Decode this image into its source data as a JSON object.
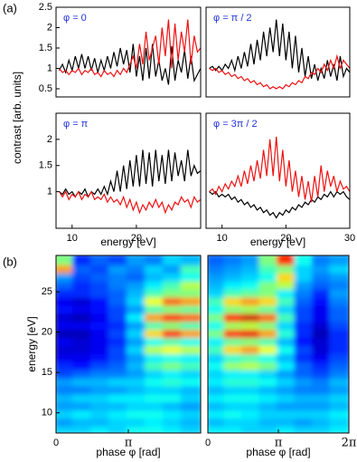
{
  "chart_data": [
    {
      "type": "line",
      "panel_label": "(a)",
      "ylabel": "contrast [arb. units]",
      "annotation": "φ = 0",
      "annotation_color": "#2233dd",
      "xlim": [
        7.5,
        30
      ],
      "ylim": [
        0.3,
        2.5
      ],
      "yticks": [
        0.5,
        1,
        1.5,
        2,
        2.5
      ],
      "x": [
        8,
        8.5,
        9,
        9.5,
        10,
        10.5,
        11,
        11.5,
        12,
        12.5,
        13,
        13.5,
        14,
        14.5,
        15,
        15.5,
        16,
        16.5,
        17,
        17.5,
        18,
        18.5,
        19,
        19.5,
        20,
        20.5,
        21,
        21.5,
        22,
        22.5,
        23,
        23.5,
        24,
        24.5,
        25,
        25.5,
        26,
        26.5,
        27,
        27.5,
        28,
        28.5,
        29,
        29.5,
        30
      ],
      "series": [
        {
          "color": "#000000",
          "values": [
            0.95,
            1.1,
            0.9,
            1.2,
            0.95,
            1.3,
            1.0,
            1.35,
            1.0,
            1.3,
            0.95,
            1.25,
            0.9,
            1.2,
            0.95,
            1.3,
            1.0,
            1.4,
            1.05,
            1.5,
            1.1,
            1.45,
            0.9,
            1.6,
            0.8,
            1.3,
            0.7,
            1.5,
            0.75,
            1.6,
            0.8,
            1.2,
            0.7,
            1.0,
            0.6,
            1.55,
            0.7,
            1.2,
            0.9,
            1.45,
            0.75,
            1.3,
            0.7,
            0.85,
            1.0
          ]
        },
        {
          "color": "#ee1111",
          "values": [
            1.0,
            0.9,
            0.95,
            0.85,
            0.95,
            0.9,
            1.0,
            0.85,
            0.95,
            0.9,
            1.0,
            0.85,
            0.9,
            0.8,
            0.95,
            0.85,
            0.9,
            0.8,
            0.95,
            0.85,
            1.0,
            0.9,
            1.1,
            1.3,
            1.0,
            1.6,
            1.1,
            1.9,
            1.2,
            1.5,
            1.8,
            1.1,
            2.0,
            1.3,
            2.2,
            1.0,
            2.1,
            1.2,
            1.9,
            1.4,
            2.2,
            1.1,
            1.8,
            1.4,
            1.5
          ]
        }
      ]
    },
    {
      "type": "line",
      "annotation": "φ = π / 2",
      "annotation_color": "#2233dd",
      "xlim": [
        7.5,
        30
      ],
      "ylim": [
        0.3,
        2.5
      ],
      "x": [
        8,
        8.5,
        9,
        9.5,
        10,
        10.5,
        11,
        11.5,
        12,
        12.5,
        13,
        13.5,
        14,
        14.5,
        15,
        15.5,
        16,
        16.5,
        17,
        17.5,
        18,
        18.5,
        19,
        19.5,
        20,
        20.5,
        21,
        21.5,
        22,
        22.5,
        23,
        23.5,
        24,
        24.5,
        25,
        25.5,
        26,
        26.5,
        27,
        27.5,
        28,
        28.5,
        29,
        29.5,
        30
      ],
      "series": [
        {
          "color": "#000000",
          "values": [
            1.0,
            1.05,
            0.95,
            1.05,
            0.95,
            1.1,
            1.0,
            1.2,
            0.95,
            1.3,
            1.0,
            1.4,
            1.05,
            1.6,
            1.1,
            1.7,
            1.2,
            1.9,
            1.3,
            2.0,
            1.4,
            2.2,
            1.3,
            2.1,
            1.2,
            1.9,
            1.0,
            1.8,
            0.9,
            1.5,
            0.8,
            1.3,
            0.75,
            1.1,
            0.7,
            1.0,
            0.75,
            1.2,
            0.8,
            1.1,
            0.7,
            1.3,
            0.8,
            1.0,
            0.9
          ]
        },
        {
          "color": "#ee1111",
          "values": [
            1.0,
            0.95,
            1.0,
            0.9,
            0.95,
            0.85,
            0.9,
            0.8,
            0.85,
            0.75,
            0.8,
            0.7,
            0.75,
            0.65,
            0.7,
            0.6,
            0.65,
            0.55,
            0.6,
            0.5,
            0.55,
            0.5,
            0.55,
            0.5,
            0.6,
            0.55,
            0.65,
            0.6,
            0.7,
            0.65,
            0.8,
            0.75,
            0.9,
            0.85,
            1.0,
            0.9,
            1.1,
            0.95,
            1.2,
            1.0,
            1.3,
            1.0,
            1.2,
            1.1,
            1.0
          ]
        }
      ]
    },
    {
      "type": "line",
      "annotation": "φ = π",
      "annotation_color": "#2233dd",
      "xlabel": "energy [eV]",
      "xlim": [
        7.5,
        30
      ],
      "ylim": [
        0.3,
        2.5
      ],
      "yticks": [
        1,
        1.5,
        2
      ],
      "xticks": [
        10,
        20
      ],
      "x": [
        8,
        8.5,
        9,
        9.5,
        10,
        10.5,
        11,
        11.5,
        12,
        12.5,
        13,
        13.5,
        14,
        14.5,
        15,
        15.5,
        16,
        16.5,
        17,
        17.5,
        18,
        18.5,
        19,
        19.5,
        20,
        20.5,
        21,
        21.5,
        22,
        22.5,
        23,
        23.5,
        24,
        24.5,
        25,
        25.5,
        26,
        26.5,
        27,
        27.5,
        28,
        28.5,
        29,
        29.5,
        30
      ],
      "series": [
        {
          "color": "#000000",
          "values": [
            1.0,
            0.95,
            1.05,
            0.95,
            1.0,
            0.9,
            1.0,
            0.95,
            1.05,
            0.9,
            1.0,
            0.95,
            1.05,
            0.95,
            1.1,
            0.95,
            1.2,
            1.0,
            1.4,
            1.0,
            1.5,
            1.05,
            1.6,
            1.1,
            1.7,
            1.1,
            1.8,
            1.15,
            1.75,
            1.1,
            1.8,
            1.2,
            1.7,
            1.15,
            1.8,
            1.2,
            1.75,
            1.3,
            1.6,
            1.2,
            1.8,
            1.3,
            1.5,
            1.35,
            1.4
          ]
        },
        {
          "color": "#ee1111",
          "values": [
            1.0,
            0.9,
            1.0,
            0.85,
            0.95,
            0.9,
            1.0,
            0.85,
            0.95,
            0.9,
            1.0,
            0.85,
            0.9,
            0.85,
            0.95,
            0.8,
            0.9,
            0.8,
            0.85,
            0.75,
            0.9,
            0.7,
            0.85,
            0.65,
            0.8,
            0.6,
            0.75,
            0.65,
            0.8,
            0.7,
            0.85,
            0.7,
            0.8,
            0.6,
            0.75,
            0.65,
            0.8,
            0.75,
            0.9,
            0.8,
            0.85,
            0.7,
            0.9,
            0.8,
            0.85
          ]
        }
      ]
    },
    {
      "type": "line",
      "annotation": "φ = 3π / 2",
      "annotation_color": "#2233dd",
      "xlabel": "energy [eV]",
      "xlim": [
        7.5,
        30
      ],
      "ylim": [
        0.3,
        2.5
      ],
      "xticks": [
        10,
        20,
        30
      ],
      "x": [
        8,
        8.5,
        9,
        9.5,
        10,
        10.5,
        11,
        11.5,
        12,
        12.5,
        13,
        13.5,
        14,
        14.5,
        15,
        15.5,
        16,
        16.5,
        17,
        17.5,
        18,
        18.5,
        19,
        19.5,
        20,
        20.5,
        21,
        21.5,
        22,
        22.5,
        23,
        23.5,
        24,
        24.5,
        25,
        25.5,
        26,
        26.5,
        27,
        27.5,
        28,
        28.5,
        29,
        29.5,
        30
      ],
      "series": [
        {
          "color": "#000000",
          "values": [
            1.0,
            0.95,
            1.0,
            0.9,
            0.95,
            0.9,
            0.95,
            0.85,
            0.9,
            0.8,
            0.85,
            0.75,
            0.8,
            0.7,
            0.75,
            0.65,
            0.7,
            0.6,
            0.65,
            0.55,
            0.6,
            0.5,
            0.6,
            0.55,
            0.65,
            0.6,
            0.7,
            0.65,
            0.75,
            0.7,
            0.8,
            0.75,
            0.85,
            0.8,
            0.9,
            0.85,
            0.95,
            0.9,
            1.0,
            0.9,
            1.0,
            0.95,
            1.0,
            0.9,
            0.85
          ]
        },
        {
          "color": "#ee1111",
          "values": [
            1.0,
            1.05,
            0.95,
            1.1,
            1.0,
            1.15,
            1.05,
            1.2,
            1.1,
            1.3,
            1.1,
            1.4,
            1.15,
            1.5,
            1.2,
            1.6,
            1.25,
            1.8,
            1.3,
            2.0,
            1.3,
            2.05,
            1.2,
            1.8,
            1.1,
            1.6,
            1.0,
            1.4,
            0.9,
            1.3,
            0.85,
            1.2,
            0.8,
            1.3,
            0.9,
            1.5,
            1.0,
            1.4,
            1.1,
            1.3,
            1.0,
            1.2,
            1.05,
            1.1,
            1.0
          ]
        }
      ]
    },
    {
      "type": "heatmap",
      "panel_label": "(b)",
      "ylabel": "energy [eV]",
      "xlabel": "phase φ [rad]",
      "colormap": "jet",
      "clim": [
        0.4,
        2.2
      ],
      "xlim": [
        0,
        6.2832
      ],
      "ylim": [
        7.5,
        29.5
      ],
      "xticks": [
        0,
        {
          "value": 3.1416,
          "label": "π"
        }
      ],
      "yticks": [
        10,
        15,
        20,
        25
      ],
      "x": [
        0.393,
        1.178,
        1.963,
        2.749,
        3.534,
        4.32,
        5.105,
        5.89
      ],
      "y": [
        8,
        9,
        10,
        11,
        12,
        13,
        14,
        15,
        16,
        17,
        18,
        19,
        20,
        21,
        22,
        23,
        24,
        25,
        26,
        27,
        28,
        29
      ],
      "values": [
        [
          1.0,
          1.0,
          1.05,
          1.0,
          1.1,
          1.1,
          1.05,
          1.0
        ],
        [
          0.9,
          0.95,
          0.95,
          1.0,
          1.0,
          1.05,
          1.0,
          0.95
        ],
        [
          1.0,
          1.05,
          1.0,
          1.05,
          1.1,
          1.1,
          1.05,
          1.0
        ],
        [
          0.9,
          0.9,
          0.95,
          0.95,
          1.0,
          1.0,
          0.95,
          0.9
        ],
        [
          0.95,
          1.0,
          1.0,
          1.05,
          1.05,
          1.1,
          1.1,
          1.0
        ],
        [
          0.85,
          0.85,
          0.9,
          0.9,
          0.95,
          1.0,
          1.0,
          0.95
        ],
        [
          0.9,
          0.95,
          0.95,
          1.0,
          1.0,
          1.1,
          1.15,
          1.1
        ],
        [
          0.75,
          0.8,
          0.85,
          0.85,
          0.9,
          1.0,
          1.05,
          1.0
        ],
        [
          0.7,
          0.65,
          0.75,
          0.8,
          0.95,
          1.2,
          1.3,
          1.2
        ],
        [
          0.6,
          0.6,
          0.65,
          0.75,
          0.9,
          1.05,
          1.1,
          1.05
        ],
        [
          0.55,
          0.55,
          0.6,
          0.75,
          1.0,
          1.4,
          1.5,
          1.4
        ],
        [
          0.6,
          0.55,
          0.6,
          0.7,
          0.9,
          1.1,
          1.2,
          1.1
        ],
        [
          0.5,
          0.5,
          0.6,
          0.75,
          1.0,
          1.6,
          1.9,
          1.7
        ],
        [
          0.6,
          0.6,
          0.65,
          0.7,
          0.9,
          1.2,
          1.3,
          1.2
        ],
        [
          0.55,
          0.5,
          0.6,
          0.75,
          1.05,
          1.7,
          1.9,
          1.8
        ],
        [
          0.65,
          0.6,
          0.65,
          0.75,
          0.9,
          1.2,
          1.3,
          1.25
        ],
        [
          0.6,
          0.55,
          0.65,
          0.8,
          1.0,
          1.5,
          1.8,
          1.7
        ],
        [
          0.7,
          0.7,
          0.75,
          0.8,
          0.95,
          1.2,
          1.3,
          1.3
        ],
        [
          0.8,
          0.7,
          0.75,
          0.85,
          0.9,
          1.05,
          1.2,
          1.4
        ],
        [
          0.9,
          0.75,
          0.8,
          0.85,
          0.8,
          0.95,
          1.0,
          1.1
        ],
        [
          1.7,
          0.8,
          0.75,
          0.9,
          0.85,
          1.0,
          0.9,
          1.2
        ],
        [
          1.3,
          0.7,
          0.8,
          0.75,
          0.9,
          0.85,
          1.0,
          0.95
        ]
      ]
    },
    {
      "type": "heatmap",
      "xlabel": "phase φ [rad]",
      "colormap": "jet",
      "clim": [
        0.4,
        2.2
      ],
      "xlim": [
        0,
        6.2832
      ],
      "ylim": [
        7.5,
        29.5
      ],
      "xticks": [
        0,
        {
          "value": 3.1416,
          "label": "π"
        },
        {
          "value": 6.2832,
          "label": "2π"
        }
      ],
      "x": [
        0.393,
        1.178,
        1.963,
        2.749,
        3.534,
        4.32,
        5.105,
        5.89
      ],
      "y": [
        8,
        9,
        10,
        11,
        12,
        13,
        14,
        15,
        16,
        17,
        18,
        19,
        20,
        21,
        22,
        23,
        24,
        25,
        26,
        27,
        28,
        29
      ],
      "values": [
        [
          1.05,
          1.05,
          1.0,
          1.0,
          1.05,
          1.0,
          1.0,
          1.05
        ],
        [
          0.95,
          1.0,
          1.0,
          0.95,
          0.95,
          0.9,
          0.95,
          1.0
        ],
        [
          1.05,
          1.1,
          1.05,
          1.0,
          1.0,
          1.0,
          1.0,
          1.05
        ],
        [
          0.95,
          1.0,
          1.0,
          0.95,
          0.9,
          0.9,
          0.9,
          0.95
        ],
        [
          1.05,
          1.1,
          1.1,
          1.05,
          1.0,
          0.95,
          0.95,
          1.0
        ],
        [
          0.95,
          1.0,
          1.0,
          0.95,
          0.9,
          0.85,
          0.85,
          0.9
        ],
        [
          1.05,
          1.15,
          1.15,
          1.1,
          1.0,
          0.9,
          0.85,
          0.95
        ],
        [
          1.0,
          1.05,
          1.05,
          1.0,
          0.9,
          0.8,
          0.75,
          0.85
        ],
        [
          1.1,
          1.35,
          1.4,
          1.3,
          1.05,
          0.8,
          0.7,
          0.8
        ],
        [
          1.0,
          1.15,
          1.2,
          1.1,
          0.95,
          0.7,
          0.6,
          0.75
        ],
        [
          1.2,
          1.6,
          1.7,
          1.5,
          1.1,
          0.75,
          0.55,
          0.7
        ],
        [
          1.05,
          1.25,
          1.3,
          1.2,
          0.95,
          0.65,
          0.55,
          0.7
        ],
        [
          1.3,
          1.9,
          2.0,
          1.7,
          1.15,
          0.7,
          0.5,
          0.7
        ],
        [
          1.1,
          1.35,
          1.4,
          1.3,
          1.0,
          0.7,
          0.55,
          0.75
        ],
        [
          1.3,
          1.95,
          2.05,
          1.8,
          1.2,
          0.75,
          0.6,
          0.8
        ],
        [
          1.1,
          1.3,
          1.35,
          1.25,
          1.0,
          0.75,
          0.6,
          0.8
        ],
        [
          1.2,
          1.6,
          1.7,
          1.6,
          1.2,
          0.8,
          0.65,
          0.85
        ],
        [
          1.0,
          1.2,
          1.25,
          1.3,
          1.05,
          0.85,
          0.7,
          0.9
        ],
        [
          0.95,
          1.05,
          1.1,
          1.3,
          1.4,
          0.9,
          0.8,
          0.85
        ],
        [
          0.9,
          0.95,
          1.0,
          1.1,
          1.6,
          1.0,
          0.85,
          0.9
        ],
        [
          0.85,
          0.9,
          0.95,
          1.2,
          1.3,
          1.0,
          0.9,
          1.0
        ],
        [
          0.8,
          0.85,
          0.9,
          1.3,
          1.9,
          1.1,
          0.85,
          0.9
        ]
      ]
    }
  ]
}
